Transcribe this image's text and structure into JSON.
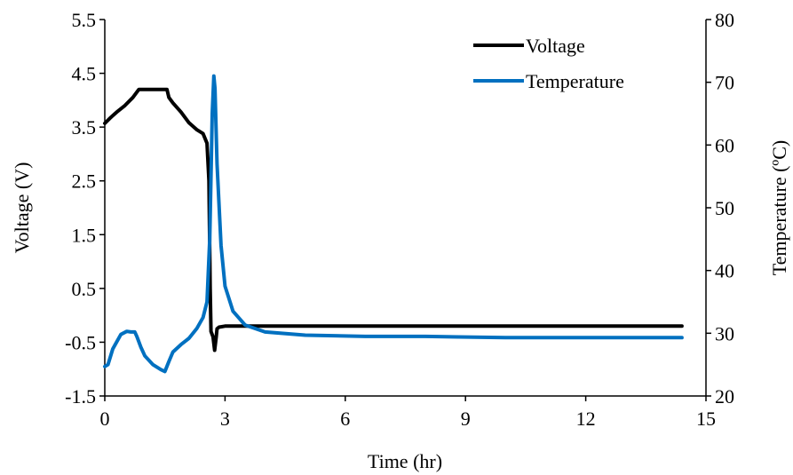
{
  "chart_data": {
    "type": "line",
    "x": {
      "label": "Time (hr)",
      "range": [
        0,
        15
      ],
      "ticks": [
        0,
        3,
        6,
        9,
        12,
        15
      ],
      "tick_labels": [
        "0",
        "3",
        "6",
        "9",
        "12",
        "15"
      ]
    },
    "y_left": {
      "label": "Voltage  (V)",
      "range": [
        -1.5,
        5.5
      ],
      "ticks": [
        -1.5,
        -0.5,
        0.5,
        1.5,
        2.5,
        3.5,
        4.5,
        5.5
      ],
      "tick_labels": [
        "-1.5",
        "-0.5",
        "0.5",
        "1.5",
        "2.5",
        "3.5",
        "4.5",
        "5.5"
      ]
    },
    "y_right": {
      "label": "Temperature (ºC)",
      "range": [
        20,
        80
      ],
      "ticks": [
        20,
        30,
        40,
        50,
        60,
        70,
        80
      ],
      "tick_labels": [
        "20",
        "30",
        "40",
        "50",
        "60",
        "70",
        "80"
      ]
    },
    "grid": false,
    "legend": {
      "position": "top-right"
    },
    "series": [
      {
        "name": "Voltage",
        "axis": "left",
        "color": "#000000",
        "x": [
          0.0,
          0.15,
          0.3,
          0.5,
          0.7,
          0.85,
          1.55,
          1.6,
          1.7,
          1.9,
          2.1,
          2.3,
          2.45,
          2.55,
          2.6,
          2.63,
          2.65,
          2.7,
          2.74,
          2.78,
          2.8,
          2.85,
          3.0,
          3.5,
          5.0,
          8.0,
          11.0,
          14.4
        ],
        "y": [
          3.57,
          3.68,
          3.78,
          3.9,
          4.05,
          4.2,
          4.2,
          4.05,
          3.95,
          3.78,
          3.58,
          3.45,
          3.38,
          3.2,
          2.5,
          0.5,
          -0.3,
          -0.4,
          -0.65,
          -0.4,
          -0.25,
          -0.22,
          -0.2,
          -0.2,
          -0.2,
          -0.2,
          -0.2,
          -0.2
        ]
      },
      {
        "name": "Temperature",
        "axis": "right",
        "color": "#0070c0",
        "x": [
          0.0,
          0.08,
          0.2,
          0.4,
          0.55,
          0.65,
          0.75,
          0.8,
          0.9,
          1.0,
          1.2,
          1.4,
          1.5,
          1.6,
          1.7,
          1.9,
          2.1,
          2.3,
          2.45,
          2.55,
          2.62,
          2.65,
          2.68,
          2.72,
          2.75,
          2.8,
          2.9,
          3.0,
          3.2,
          3.5,
          4.0,
          5.0,
          6.5,
          8.0,
          10.0,
          12.0,
          14.4
        ],
        "y": [
          24.7,
          25.0,
          27.5,
          29.8,
          30.3,
          30.2,
          30.2,
          29.5,
          27.8,
          26.4,
          25.0,
          24.2,
          23.9,
          25.5,
          27.0,
          28.2,
          29.2,
          30.8,
          32.5,
          35.0,
          45.0,
          55.0,
          65.0,
          71.0,
          69.0,
          57.0,
          44.0,
          37.5,
          33.5,
          31.3,
          30.2,
          29.7,
          29.5,
          29.5,
          29.3,
          29.3,
          29.3
        ]
      }
    ]
  }
}
